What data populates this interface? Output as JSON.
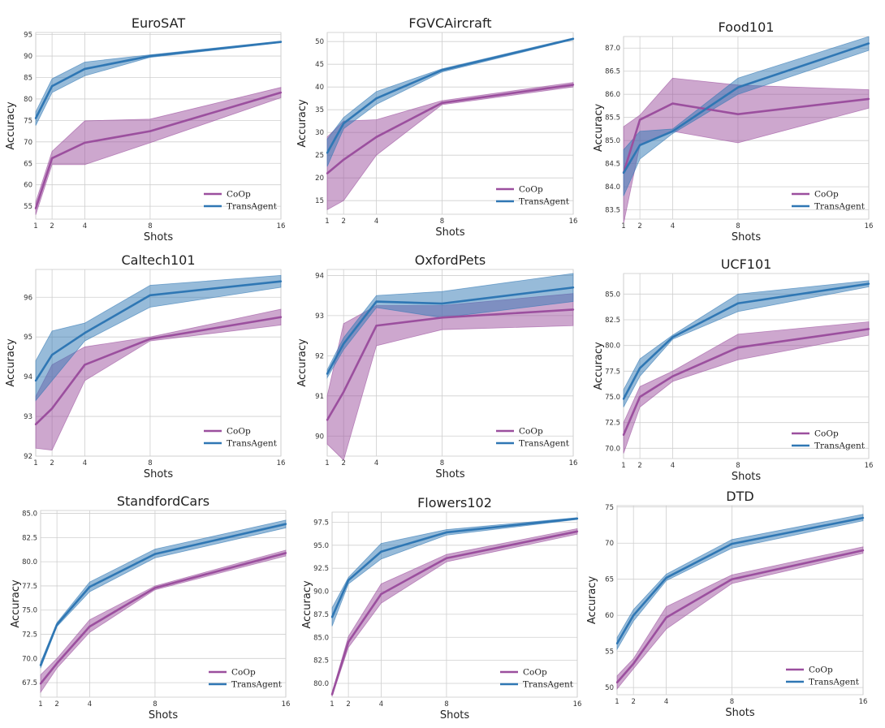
{
  "colors": {
    "coop": "#9b4f9e",
    "transagent": "#2f77b4",
    "grid": "#cfcfcf",
    "plot_bg": "#ffffff"
  },
  "chart_data": [
    {
      "type": "line",
      "title": "EuroSAT",
      "xlabel": "Shots",
      "ylabel": "Accuracy",
      "x": [
        1,
        2,
        4,
        8,
        16
      ],
      "xticks": [
        "1",
        "2",
        "4",
        "8",
        "16"
      ],
      "ylim": [
        52,
        95.5
      ],
      "yticks": [
        55,
        60,
        65,
        70,
        75,
        80,
        85,
        90,
        95
      ],
      "ytick_labels": [
        "55",
        "60",
        "65",
        "70",
        "75",
        "80",
        "85",
        "90",
        "95"
      ],
      "legend": "lower-right",
      "series": [
        {
          "name": "CoOp",
          "values": [
            54.5,
            66.2,
            69.8,
            72.5,
            81.5
          ],
          "lower": [
            53.0,
            64.7,
            64.7,
            69.8,
            80.3
          ],
          "upper": [
            56.0,
            67.8,
            74.9,
            75.3,
            82.7
          ]
        },
        {
          "name": "TransAgent",
          "values": [
            75.5,
            83.0,
            87.0,
            90.0,
            93.3
          ],
          "lower": [
            73.8,
            81.5,
            85.4,
            89.7,
            93.1
          ],
          "upper": [
            77.0,
            84.7,
            88.6,
            90.3,
            93.5
          ]
        }
      ]
    },
    {
      "type": "line",
      "title": "FGVCAircraft",
      "xlabel": "Shots",
      "ylabel": "Accuracy",
      "x": [
        1,
        2,
        4,
        8,
        16
      ],
      "xticks": [
        "1",
        "2",
        "4",
        "8",
        "16"
      ],
      "ylim": [
        12,
        52
      ],
      "yticks": [
        15,
        20,
        25,
        30,
        35,
        40,
        45,
        50
      ],
      "ytick_labels": [
        "15",
        "20",
        "25",
        "30",
        "35",
        "40",
        "45",
        "50"
      ],
      "legend": "lower-right",
      "series": [
        {
          "name": "CoOp",
          "values": [
            21.0,
            24.0,
            29.0,
            36.5,
            40.5
          ],
          "lower": [
            13.0,
            15.0,
            25.0,
            36.1,
            40.0
          ],
          "upper": [
            29.0,
            32.5,
            32.8,
            37.0,
            41.0
          ]
        },
        {
          "name": "TransAgent",
          "values": [
            25.5,
            32.0,
            37.5,
            43.7,
            50.6
          ],
          "lower": [
            22.5,
            30.8,
            36.2,
            43.3,
            50.4
          ],
          "upper": [
            28.5,
            33.3,
            39.0,
            44.0,
            50.8
          ]
        }
      ]
    },
    {
      "type": "line",
      "title": "Food101",
      "xlabel": "Shots",
      "ylabel": "Accuracy",
      "x": [
        1,
        2,
        4,
        8,
        16
      ],
      "xticks": [
        "1",
        "2",
        "4",
        "8",
        "16"
      ],
      "ylim": [
        83.3,
        87.25
      ],
      "yticks": [
        83.5,
        84.0,
        84.5,
        85.0,
        85.5,
        86.0,
        86.5,
        87.0
      ],
      "ytick_labels": [
        "83.5",
        "84.0",
        "84.5",
        "85.0",
        "85.5",
        "86.0",
        "86.5",
        "87.0"
      ],
      "legend": "lower-right",
      "series": [
        {
          "name": "CoOp",
          "values": [
            84.3,
            85.45,
            85.8,
            85.57,
            85.9
          ],
          "lower": [
            83.2,
            84.9,
            85.2,
            84.95,
            85.7
          ],
          "upper": [
            85.3,
            85.55,
            86.35,
            86.2,
            86.1
          ]
        },
        {
          "name": "TransAgent",
          "values": [
            84.3,
            84.9,
            85.2,
            86.15,
            87.1
          ],
          "lower": [
            83.8,
            84.6,
            85.15,
            86.0,
            86.95
          ],
          "upper": [
            84.8,
            85.2,
            85.25,
            86.35,
            87.25
          ]
        }
      ]
    },
    {
      "type": "line",
      "title": "Caltech101",
      "xlabel": "Shots",
      "ylabel": "Accuracy",
      "x": [
        1,
        2,
        4,
        8,
        16
      ],
      "xticks": [
        "1",
        "2",
        "4",
        "8",
        "16"
      ],
      "ylim": [
        92.0,
        96.7
      ],
      "yticks": [
        92,
        93,
        94,
        95,
        96
      ],
      "ytick_labels": [
        "92",
        "93",
        "94",
        "95",
        "96"
      ],
      "legend": "lower-right",
      "series": [
        {
          "name": "CoOp",
          "values": [
            92.8,
            93.2,
            94.3,
            94.95,
            95.5
          ],
          "lower": [
            92.2,
            92.15,
            93.9,
            94.9,
            95.3
          ],
          "upper": [
            93.5,
            94.3,
            94.75,
            95.0,
            95.7
          ]
        },
        {
          "name": "TransAgent",
          "values": [
            93.9,
            94.55,
            95.1,
            96.05,
            96.4
          ],
          "lower": [
            93.4,
            93.9,
            94.9,
            95.75,
            96.25
          ],
          "upper": [
            94.4,
            95.15,
            95.35,
            96.3,
            96.55
          ]
        }
      ]
    },
    {
      "type": "line",
      "title": "OxfordPets",
      "xlabel": "Shots",
      "ylabel": "Accuracy",
      "x": [
        1,
        2,
        4,
        8,
        16
      ],
      "xticks": [
        "1",
        "2",
        "4",
        "8",
        "16"
      ],
      "ylim": [
        89.5,
        94.15
      ],
      "yticks": [
        90,
        91,
        92,
        93,
        94
      ],
      "ytick_labels": [
        "90",
        "91",
        "92",
        "93",
        "94"
      ],
      "legend": "lower-right",
      "series": [
        {
          "name": "CoOp",
          "values": [
            90.4,
            91.1,
            92.75,
            92.95,
            93.15
          ],
          "lower": [
            89.8,
            89.4,
            92.25,
            92.65,
            92.75
          ],
          "upper": [
            91.0,
            92.8,
            93.25,
            93.25,
            93.55
          ]
        },
        {
          "name": "TransAgent",
          "values": [
            91.55,
            92.3,
            93.35,
            93.3,
            93.7
          ],
          "lower": [
            91.45,
            92.15,
            93.2,
            92.95,
            93.35
          ],
          "upper": [
            91.65,
            92.45,
            93.5,
            93.6,
            94.05
          ]
        }
      ]
    },
    {
      "type": "line",
      "title": "UCF101",
      "xlabel": "Shots",
      "ylabel": "Accuracy",
      "x": [
        1,
        2,
        4,
        8,
        16
      ],
      "xticks": [
        "1",
        "2",
        "4",
        "8",
        "16"
      ],
      "ylim": [
        69.0,
        87.0
      ],
      "yticks": [
        70.0,
        72.5,
        75.0,
        77.5,
        80.0,
        82.5,
        85.0
      ],
      "ytick_labels": [
        "70.0",
        "72.5",
        "75.0",
        "77.5",
        "80.0",
        "82.5",
        "85.0"
      ],
      "legend": "lower-right",
      "series": [
        {
          "name": "CoOp",
          "values": [
            71.3,
            75.0,
            77.0,
            79.8,
            81.6
          ],
          "lower": [
            69.5,
            74.0,
            76.5,
            78.6,
            81.0
          ],
          "upper": [
            72.5,
            76.0,
            77.5,
            81.1,
            82.3
          ]
        },
        {
          "name": "TransAgent",
          "values": [
            74.8,
            77.8,
            80.8,
            84.1,
            86.0
          ],
          "lower": [
            74.0,
            77.0,
            80.6,
            83.3,
            85.7
          ],
          "upper": [
            75.7,
            78.7,
            81.0,
            85.0,
            86.3
          ]
        }
      ]
    },
    {
      "type": "line",
      "title": "StandfordCars",
      "xlabel": "Shots",
      "ylabel": "Accuracy",
      "x": [
        1,
        2,
        4,
        8,
        16
      ],
      "xticks": [
        "1",
        "2",
        "4",
        "8",
        "16"
      ],
      "ylim": [
        66.0,
        85.3
      ],
      "yticks": [
        67.5,
        70.0,
        72.5,
        75.0,
        77.5,
        80.0,
        82.5,
        85.0
      ],
      "ytick_labels": [
        "67.5",
        "70.0",
        "72.5",
        "75.0",
        "77.5",
        "80.0",
        "82.5",
        "85.0"
      ],
      "legend": "lower-right",
      "series": [
        {
          "name": "CoOp",
          "values": [
            67.4,
            69.5,
            73.3,
            77.3,
            80.9
          ],
          "lower": [
            66.5,
            69.0,
            72.7,
            77.1,
            80.6
          ],
          "upper": [
            68.3,
            70.0,
            74.0,
            77.5,
            81.2
          ]
        },
        {
          "name": "TransAgent",
          "values": [
            69.3,
            73.5,
            77.4,
            80.8,
            83.9
          ],
          "lower": [
            69.0,
            73.3,
            76.9,
            80.4,
            83.5
          ],
          "upper": [
            69.6,
            73.7,
            77.9,
            81.3,
            84.3
          ]
        }
      ]
    },
    {
      "type": "line",
      "title": "Flowers102",
      "xlabel": "Shots",
      "ylabel": "Accuracy",
      "x": [
        1,
        2,
        4,
        8,
        16
      ],
      "xticks": [
        "1",
        "2",
        "4",
        "8",
        "16"
      ],
      "ylim": [
        78.5,
        98.6
      ],
      "yticks": [
        80.0,
        82.5,
        85.0,
        87.5,
        90.0,
        92.5,
        95.0,
        97.5
      ],
      "ytick_labels": [
        "80.0",
        "82.5",
        "85.0",
        "87.5",
        "90.0",
        "92.5",
        "95.0",
        "97.5"
      ],
      "legend": "lower-right",
      "series": [
        {
          "name": "CoOp",
          "values": [
            78.8,
            84.5,
            89.7,
            93.6,
            96.5
          ],
          "lower": [
            78.6,
            83.9,
            88.7,
            93.2,
            96.2
          ],
          "upper": [
            79.0,
            85.1,
            90.8,
            94.0,
            96.8
          ]
        },
        {
          "name": "TransAgent",
          "values": [
            87.2,
            91.2,
            94.3,
            96.4,
            97.9
          ],
          "lower": [
            86.2,
            90.8,
            93.5,
            96.1,
            97.8
          ],
          "upper": [
            88.2,
            91.5,
            95.2,
            96.7,
            98.0
          ]
        }
      ]
    },
    {
      "type": "line",
      "title": "DTD",
      "xlabel": "Shots",
      "ylabel": "Accuracy",
      "x": [
        1,
        2,
        4,
        8,
        16
      ],
      "xticks": [
        "1",
        "2",
        "4",
        "8",
        "16"
      ],
      "ylim": [
        49.0,
        75.2
      ],
      "yticks": [
        50,
        55,
        60,
        65,
        70,
        75
      ],
      "ytick_labels": [
        "50",
        "55",
        "60",
        "65",
        "70",
        "75"
      ],
      "legend": "lower-right",
      "series": [
        {
          "name": "CoOp",
          "values": [
            50.7,
            53.3,
            59.7,
            65.0,
            69.0
          ],
          "lower": [
            49.8,
            52.6,
            58.1,
            64.4,
            68.6
          ],
          "upper": [
            51.6,
            54.0,
            61.2,
            65.6,
            69.5
          ]
        },
        {
          "name": "TransAgent",
          "values": [
            56.1,
            60.0,
            65.2,
            69.9,
            73.5
          ],
          "lower": [
            55.3,
            59.2,
            64.8,
            69.3,
            73.1
          ],
          "upper": [
            56.9,
            60.8,
            65.7,
            70.5,
            74.0
          ]
        }
      ]
    }
  ]
}
